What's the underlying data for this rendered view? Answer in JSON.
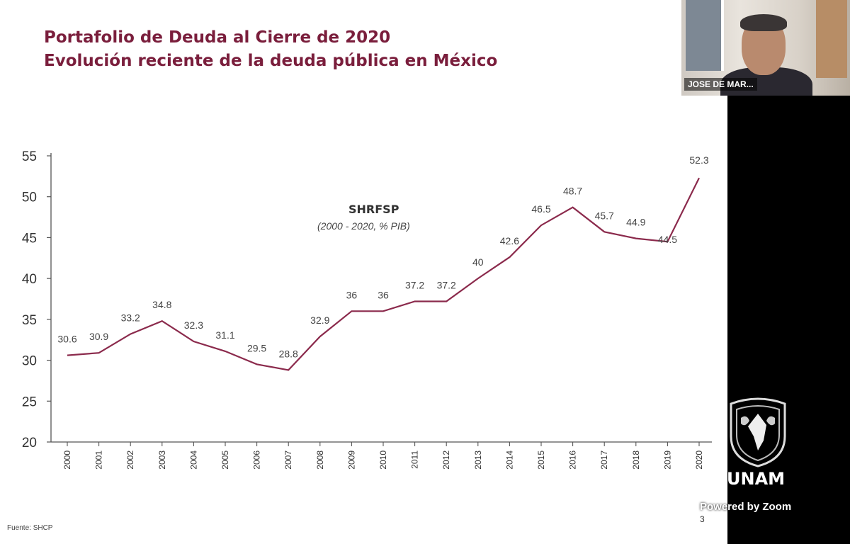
{
  "slide": {
    "title_line1": "Portafolio de Deuda al Cierre de 2020",
    "title_line2": "Evolución reciente de la deuda pública en México",
    "source": "Fuente: SHCP",
    "page_number": "3"
  },
  "chart_data": {
    "type": "line",
    "x": [
      "2000",
      "2001",
      "2002",
      "2003",
      "2004",
      "2005",
      "2006",
      "2007",
      "2008",
      "2009",
      "2010",
      "2011",
      "2012",
      "2013",
      "2014",
      "2015",
      "2016",
      "2017",
      "2018",
      "2019",
      "2020"
    ],
    "series": [
      {
        "name": "SHRFSP",
        "subtitle": "(2000 - 2020, % PIB)",
        "values": [
          30.6,
          30.9,
          33.2,
          34.8,
          32.3,
          31.1,
          29.5,
          28.8,
          32.9,
          36,
          36,
          37.2,
          37.2,
          40,
          42.6,
          46.5,
          48.7,
          45.7,
          44.9,
          44.5,
          52.3
        ],
        "labels": [
          "30.6",
          "30.9",
          "33.2",
          "34.8",
          "32.3",
          "31.1",
          "29.5",
          "28.8",
          "32.9",
          "36",
          "36",
          "37.2",
          "37.2",
          "40",
          "42.6",
          "46.5",
          "48.7",
          "45.7",
          "44.9",
          "44.5",
          "52.3"
        ]
      }
    ],
    "yticks": [
      "20",
      "25",
      "30",
      "35",
      "40",
      "45",
      "50",
      "55"
    ],
    "ylim": [
      20,
      55
    ],
    "grid": false,
    "line_color": "#8b2a4c"
  },
  "video_call": {
    "participant_name": "JOSE DE MAR...",
    "branding": "UNAM",
    "powered_by": "Powered by Zoom"
  }
}
